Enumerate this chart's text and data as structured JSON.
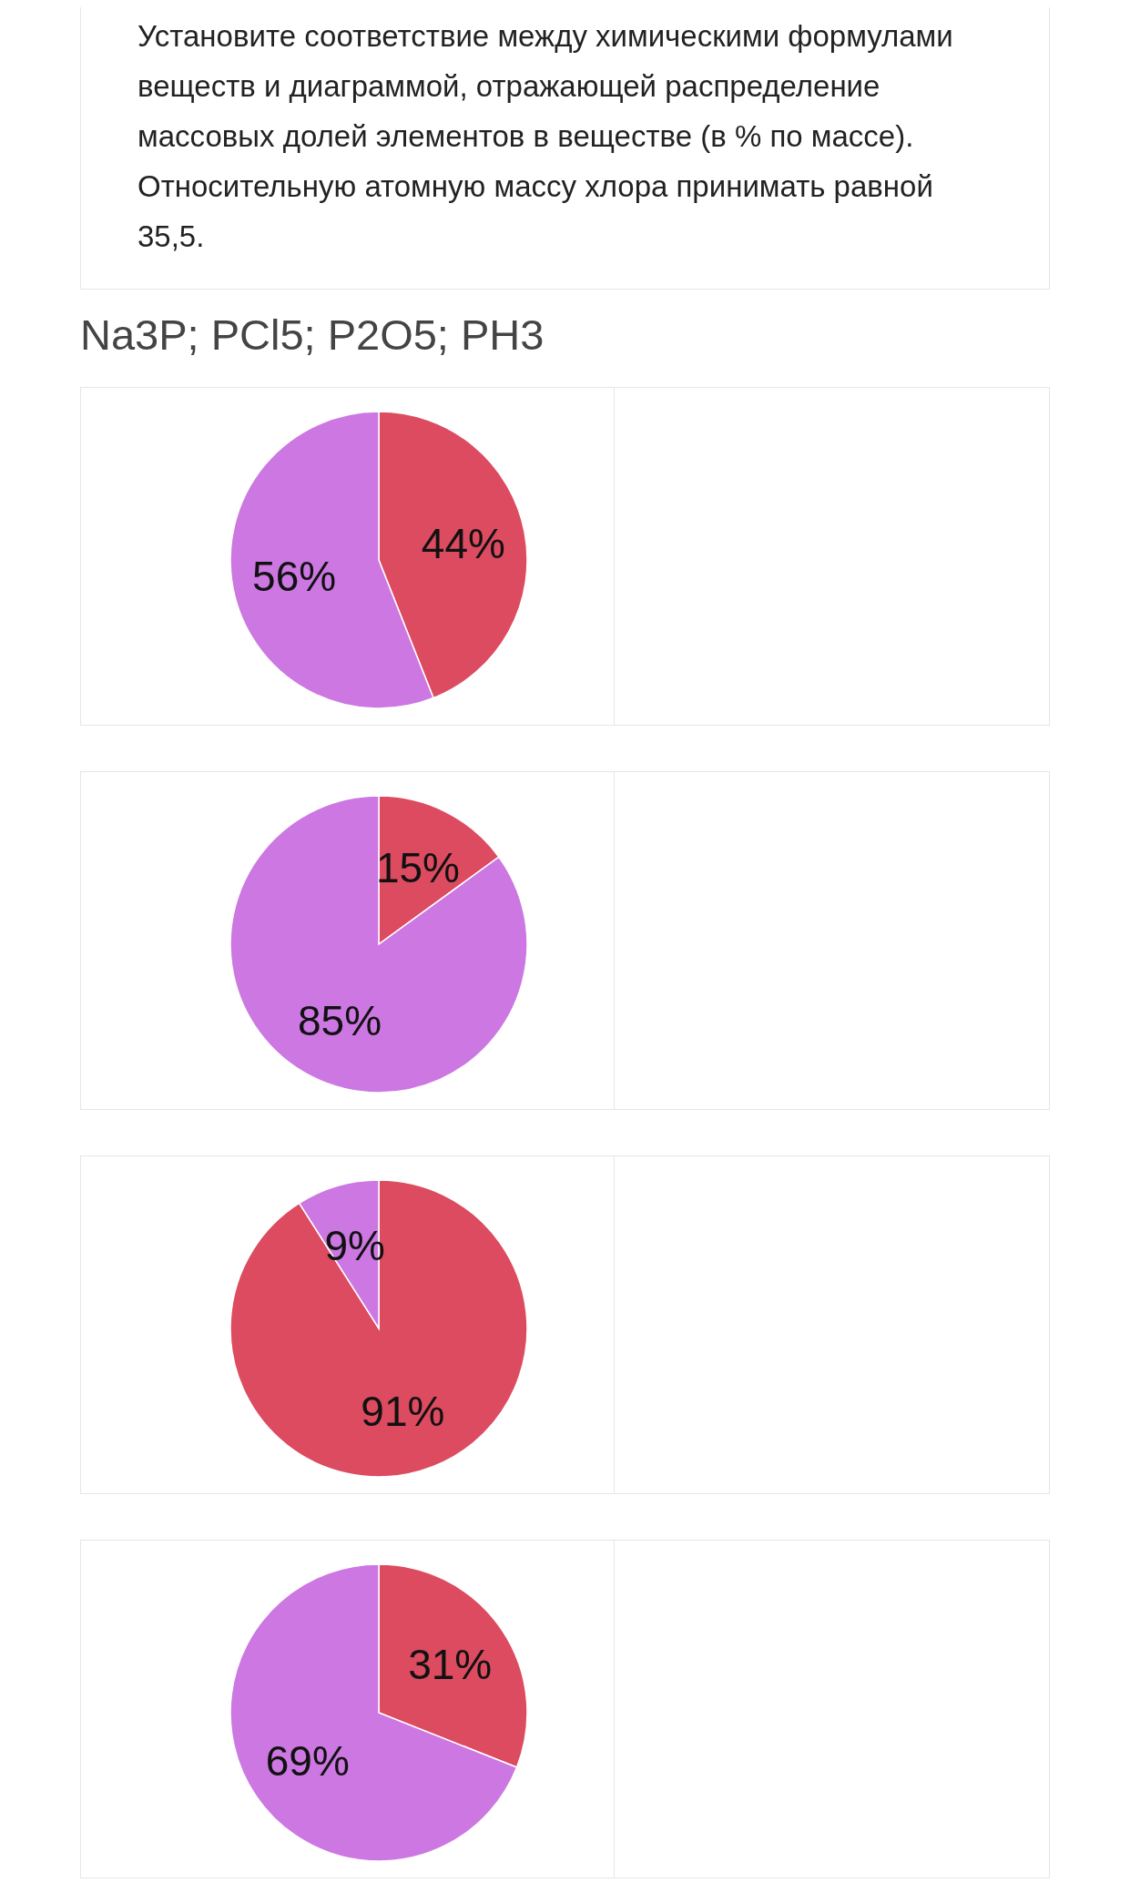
{
  "chart_data": [
    {
      "type": "other",
      "title": "Установите соответствие между химическими формулами веществ и диаграммой, отражающей распределение массовых долей элементов в веществе (в % по массе). Относительную атомную массу хлора принимать равной 35,5.",
      "subtitle": "Na3P;  PCl5;  P2O5;  PH3"
    },
    {
      "type": "pie",
      "categories": [
        null,
        null
      ],
      "values": [
        44,
        56
      ],
      "colors": [
        "#dc4b60",
        "#cc77e2"
      ],
      "value_labels": [
        "44%",
        "56%"
      ]
    },
    {
      "type": "pie",
      "categories": [
        null,
        null
      ],
      "values": [
        15,
        85
      ],
      "colors": [
        "#dc4b60",
        "#cc77e2"
      ],
      "value_labels": [
        "15%",
        "85%"
      ]
    },
    {
      "type": "pie",
      "categories": [
        null,
        null
      ],
      "values": [
        91,
        9
      ],
      "colors": [
        "#dc4b60",
        "#cc77e2"
      ],
      "value_labels": [
        "91%",
        "9%"
      ]
    },
    {
      "type": "pie",
      "categories": [
        null,
        null
      ],
      "values": [
        31,
        69
      ],
      "colors": [
        "#dc4b60",
        "#cc77e2"
      ],
      "value_labels": [
        "31%",
        "69%"
      ]
    }
  ]
}
